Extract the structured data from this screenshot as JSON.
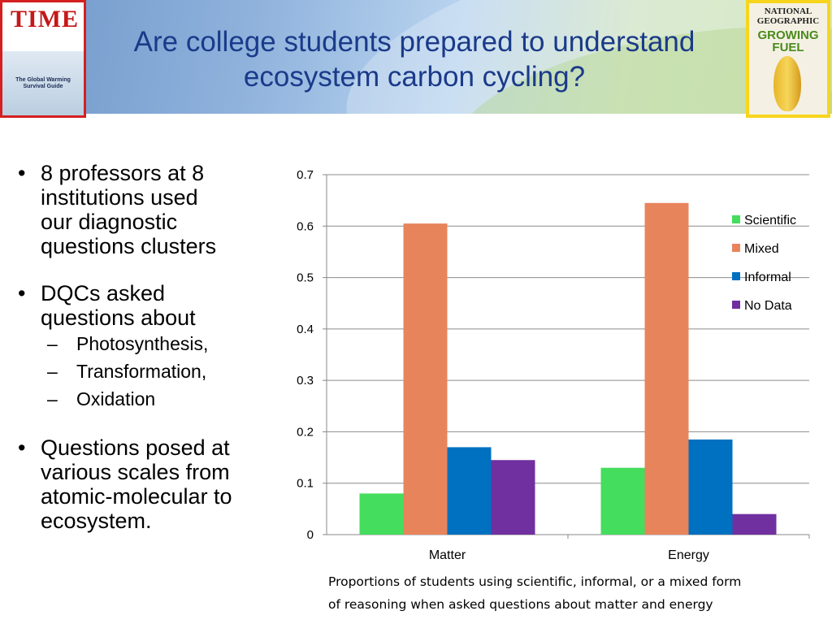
{
  "slide": {
    "title_line1": "Are college students prepared to understand",
    "title_line2": "ecosystem carbon cycling?"
  },
  "covers": {
    "time": {
      "logo": "TIME",
      "guide": "The Global Warming Survival Guide"
    },
    "natgeo": {
      "masthead_line1": "NATIONAL",
      "masthead_line2": "GEOGRAPHIC",
      "headline_line1": "GROWING",
      "headline_line2": "FUEL"
    }
  },
  "bullets": {
    "b1_l1": "8 professors at 8",
    "b1_l2": "institutions used",
    "b1_l3": "our diagnostic",
    "b1_l4": "questions clusters",
    "b2_l1": "DQCs asked",
    "b2_l2": "questions about",
    "b2_sub1": "Photosynthesis,",
    "b2_sub2": "Transformation,",
    "b2_sub3": "Oxidation",
    "b3_l1": "Questions posed at",
    "b3_l2": "various scales from",
    "b3_l3": "atomic-molecular to",
    "b3_l4": "ecosystem.",
    "bullet_char": "•",
    "dash_char": "–"
  },
  "chart_data": {
    "type": "bar",
    "categories": [
      "Matter",
      "Energy"
    ],
    "series": [
      {
        "name": "Scientific",
        "values": [
          0.08,
          0.13
        ],
        "color": "#45dd5d"
      },
      {
        "name": "Mixed",
        "values": [
          0.605,
          0.645
        ],
        "color": "#e8845c"
      },
      {
        "name": "Informal",
        "values": [
          0.17,
          0.185
        ],
        "color": "#0070c0"
      },
      {
        "name": "No Data",
        "values": [
          0.145,
          0.04
        ],
        "color": "#7030a0"
      }
    ],
    "yticks": [
      "0",
      "0.1",
      "0.2",
      "0.3",
      "0.4",
      "0.5",
      "0.6",
      "0.7"
    ],
    "ylim": [
      0,
      0.7
    ],
    "grid": true,
    "legend": "right"
  },
  "caption": {
    "line1": "Proportions of students using scientific, informal, or a mixed form",
    "line2": "of reasoning when asked questions about matter and energy"
  }
}
